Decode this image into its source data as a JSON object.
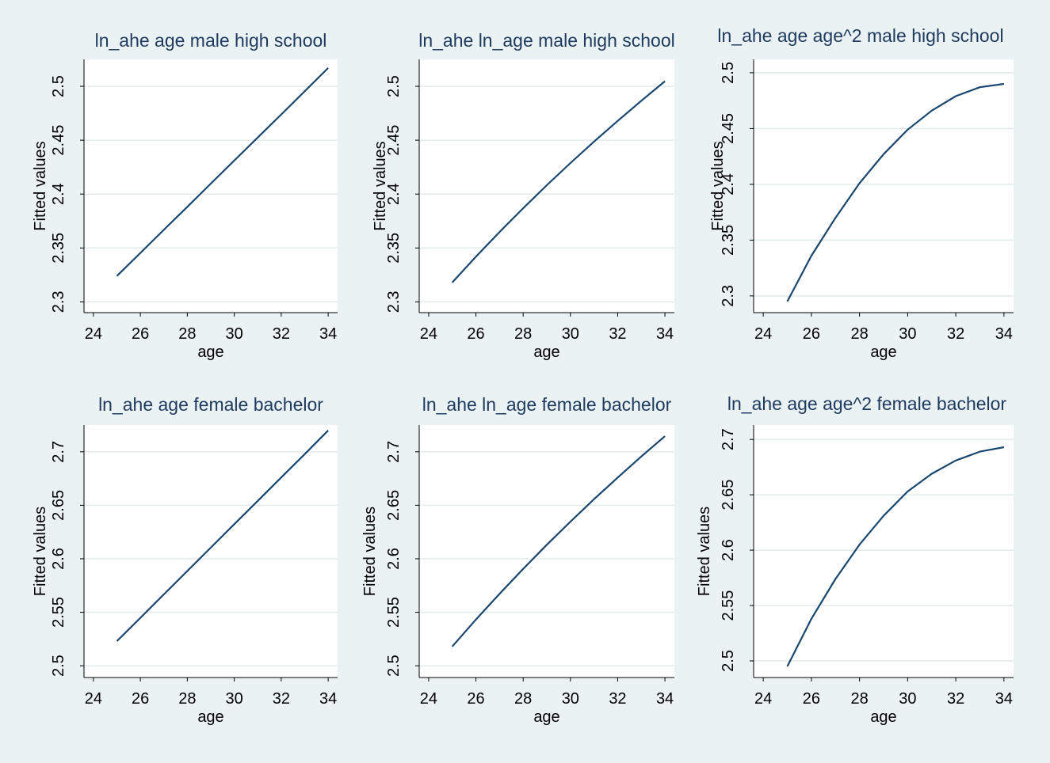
{
  "figure": {
    "background": "#eaf2f3",
    "plot_background": "#ffffff",
    "line_color": "#1a476f",
    "title_color": "#1e3a5f",
    "grid_color": "#e3eaeb"
  },
  "chart_data": [
    {
      "type": "line",
      "title": "ln_ahe age male high school",
      "xlabel": "age",
      "ylabel": "Fitted values",
      "xlim": [
        23.6,
        34.4
      ],
      "ylim": [
        2.29,
        2.525
      ],
      "xticks": [
        24,
        26,
        28,
        30,
        32,
        34
      ],
      "yticks": [
        2.3,
        2.35,
        2.4,
        2.45,
        2.5
      ],
      "grid": "horizontal",
      "series": [
        {
          "x": [
            25,
            26,
            27,
            28,
            29,
            30,
            31,
            32,
            33,
            34
          ],
          "values": [
            2.324,
            2.3454,
            2.3668,
            2.3882,
            2.4097,
            2.4311,
            2.4525,
            2.4739,
            2.4954,
            2.517
          ]
        }
      ]
    },
    {
      "type": "line",
      "title": "ln_ahe ln_age male high school",
      "xlabel": "age",
      "ylabel": "Fitted values",
      "xlim": [
        23.6,
        34.4
      ],
      "ylim": [
        2.29,
        2.525
      ],
      "xticks": [
        24,
        26,
        28,
        30,
        32,
        34
      ],
      "yticks": [
        2.3,
        2.35,
        2.4,
        2.45,
        2.5
      ],
      "grid": "horizontal",
      "series": [
        {
          "x": [
            25,
            26,
            27,
            28,
            29,
            30,
            31,
            32,
            33,
            34
          ],
          "values": [
            2.318,
            2.3419,
            2.3648,
            2.3869,
            2.4082,
            2.4288,
            2.4487,
            2.4679,
            2.4866,
            2.5047
          ]
        }
      ]
    },
    {
      "type": "line",
      "title": "ln_ahe age age^2 male high school",
      "xlabel": "age",
      "ylabel": "Fitted values",
      "xlim": [
        23.6,
        34.4
      ],
      "ylim": [
        2.285,
        2.512
      ],
      "xticks": [
        24,
        26,
        28,
        30,
        32,
        34
      ],
      "yticks": [
        2.3,
        2.35,
        2.4,
        2.45,
        2.5
      ],
      "grid": "horizontal",
      "series": [
        {
          "x": [
            25,
            26,
            27,
            28,
            29,
            30,
            31,
            32,
            33,
            34
          ],
          "values": [
            2.295,
            2.336,
            2.37,
            2.401,
            2.427,
            2.449,
            2.466,
            2.479,
            2.487,
            2.49
          ]
        }
      ]
    },
    {
      "type": "line",
      "title": "ln_ahe age female bachelor",
      "xlabel": "age",
      "ylabel": "Fitted values",
      "xlim": [
        23.6,
        34.4
      ],
      "ylim": [
        2.489,
        2.725
      ],
      "xticks": [
        24,
        26,
        28,
        30,
        32,
        34
      ],
      "yticks": [
        2.5,
        2.55,
        2.6,
        2.65,
        2.7
      ],
      "grid": "horizontal",
      "series": [
        {
          "x": [
            25,
            26,
            27,
            28,
            29,
            30,
            31,
            32,
            33,
            34
          ],
          "values": [
            2.523,
            2.5448,
            2.5667,
            2.5886,
            2.6104,
            2.6323,
            2.6541,
            2.676,
            2.6978,
            2.72
          ]
        }
      ]
    },
    {
      "type": "line",
      "title": "ln_ahe ln_age female bachelor",
      "xlabel": "age",
      "ylabel": "Fitted values",
      "xlim": [
        23.6,
        34.4
      ],
      "ylim": [
        2.489,
        2.725
      ],
      "xticks": [
        24,
        26,
        28,
        30,
        32,
        34
      ],
      "yticks": [
        2.5,
        2.55,
        2.6,
        2.65,
        2.7
      ],
      "grid": "horizontal",
      "series": [
        {
          "x": [
            25,
            26,
            27,
            28,
            29,
            30,
            31,
            32,
            33,
            34
          ],
          "values": [
            2.518,
            2.5432,
            2.5673,
            2.5906,
            2.6131,
            2.6347,
            2.6557,
            2.6759,
            2.6956,
            2.7146
          ]
        }
      ]
    },
    {
      "type": "line",
      "title": "ln_ahe age age^2 female bachelor",
      "xlabel": "age",
      "ylabel": "Fitted values",
      "xlim": [
        23.6,
        34.4
      ],
      "ylim": [
        2.485,
        2.713
      ],
      "xticks": [
        24,
        26,
        28,
        30,
        32,
        34
      ],
      "yticks": [
        2.5,
        2.55,
        2.6,
        2.65,
        2.7
      ],
      "grid": "horizontal",
      "series": [
        {
          "x": [
            25,
            26,
            27,
            28,
            29,
            30,
            31,
            32,
            33,
            34
          ],
          "values": [
            2.495,
            2.538,
            2.574,
            2.605,
            2.631,
            2.653,
            2.669,
            2.681,
            2.689,
            2.693
          ]
        }
      ]
    }
  ]
}
